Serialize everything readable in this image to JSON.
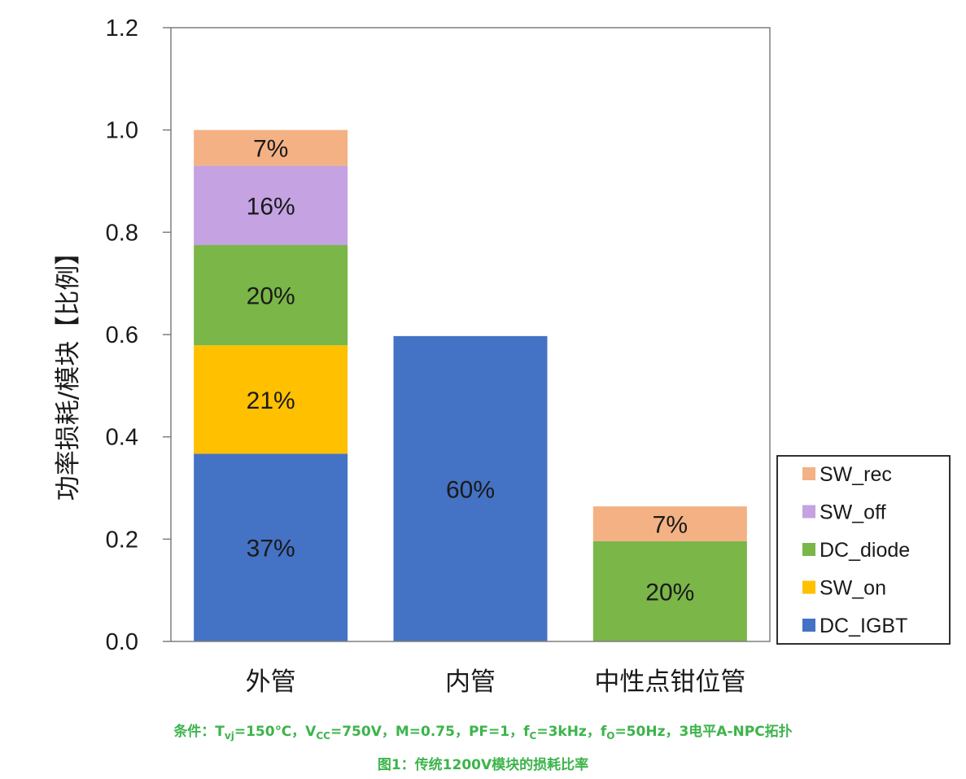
{
  "chart_data": {
    "type": "bar",
    "stacked": true,
    "ylabel": "功率损耗/模块【比例】",
    "ylim": [
      0,
      1.2
    ],
    "yticks": [
      "0.0",
      "0.2",
      "0.4",
      "0.6",
      "0.8",
      "1.0",
      "1.2"
    ],
    "categories": [
      "外管",
      "内管",
      "中性点钳位管"
    ],
    "series": [
      {
        "name": "DC_IGBT",
        "color": "#4472c4",
        "values": [
          0.367,
          0.597,
          0
        ],
        "labels": [
          "37%",
          "60%",
          ""
        ]
      },
      {
        "name": "SW_on",
        "color": "#ffc000",
        "values": [
          0.212,
          0,
          0
        ],
        "labels": [
          "21%",
          "",
          ""
        ]
      },
      {
        "name": "DC_diode",
        "color": "#7ab648",
        "values": [
          0.196,
          0,
          0.196
        ],
        "labels": [
          "20%",
          "",
          "20%"
        ]
      },
      {
        "name": "SW_off",
        "color": "#c5a2e2",
        "values": [
          0.155,
          0,
          0
        ],
        "labels": [
          "16%",
          "",
          ""
        ]
      },
      {
        "name": "SW_rec",
        "color": "#f4b184",
        "values": [
          0.07,
          0,
          0.068
        ],
        "labels": [
          "7%",
          "",
          "7%"
        ]
      }
    ],
    "legend_position": "right",
    "legend_order": [
      "SW_rec",
      "SW_off",
      "DC_diode",
      "SW_on",
      "DC_IGBT"
    ],
    "grid": false
  },
  "caption": {
    "cond_prefix": "条件：T",
    "cond_sub1": "vj",
    "cond_mid1": "=150℃，V",
    "cond_sub2": "CC",
    "cond_mid2": "=750V，M=0.75，PF=1，f",
    "cond_sub3": "C",
    "cond_mid3": "=3kHz，f",
    "cond_sub4": "O",
    "cond_suffix": "=50Hz，3电平A-NPC拓扑",
    "figure": "图1：传统1200V模块的损耗比率"
  }
}
